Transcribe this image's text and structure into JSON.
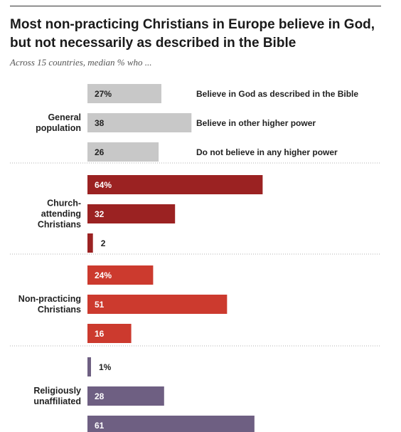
{
  "chart_data": {
    "type": "bar",
    "title": "Most non-practicing Christians in Europe believe in God, but not necessarily as described in the Bible",
    "subtitle": "Across 15 countries, median % who ...",
    "categories": [
      "Believe in God as described in the Bible",
      "Believe in other higher power",
      "Do not believe in any higher power"
    ],
    "groups": [
      {
        "name": "General population",
        "label_lines": [
          "General",
          "population"
        ],
        "color": "#c8c8c8",
        "label_color": "#222222",
        "values": [
          27,
          38,
          26
        ],
        "labels": [
          "27%",
          "38",
          "26"
        ]
      },
      {
        "name": "Church-attending Christians",
        "label_lines": [
          "Church-",
          "attending",
          "Christians"
        ],
        "color": "#9b2222",
        "label_color": "#ffffff",
        "values": [
          64,
          32,
          2
        ],
        "labels": [
          "64%",
          "32",
          "2"
        ]
      },
      {
        "name": "Non-practicing Christians",
        "label_lines": [
          "Non-practicing",
          "Christians"
        ],
        "color": "#cc3a2e",
        "label_color": "#ffffff",
        "values": [
          24,
          51,
          16
        ],
        "labels": [
          "24%",
          "51",
          "16"
        ]
      },
      {
        "name": "Religiously unaffiliated",
        "label_lines": [
          "Religiously",
          "unaffiliated"
        ],
        "color": "#6e5f82",
        "label_color": "#ffffff",
        "values": [
          1,
          28,
          61
        ],
        "labels": [
          "1%",
          "28",
          "61"
        ]
      }
    ],
    "xlim": [
      0,
      100
    ],
    "grid": false,
    "legend": "right of first group"
  }
}
